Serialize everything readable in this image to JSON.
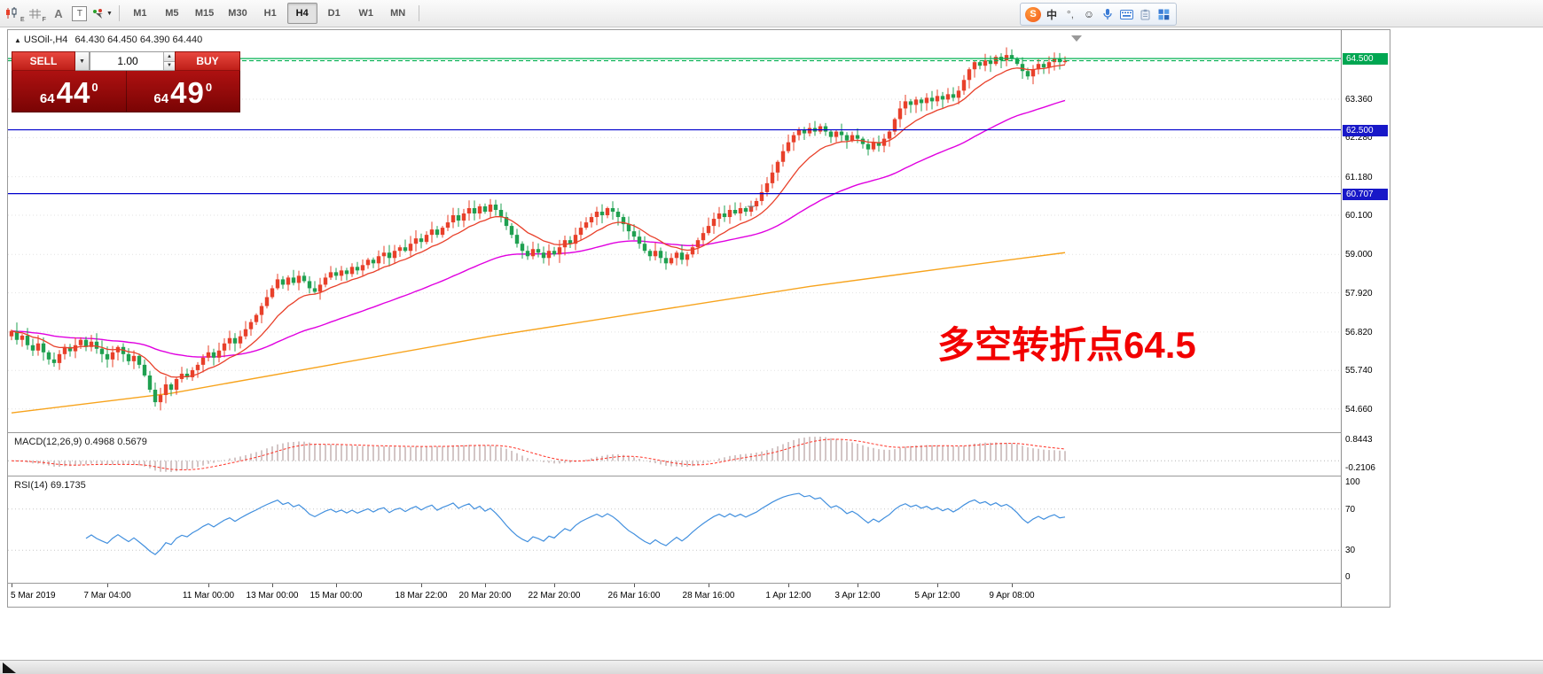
{
  "toolbar": {
    "icons": {
      "candlestick_sub": "E",
      "grid_sub": "F",
      "text_label": "A",
      "text_tool": "T",
      "dropdown_chevron": "▼"
    },
    "timeframes": [
      "M1",
      "M5",
      "M15",
      "M30",
      "H1",
      "H4",
      "D1",
      "W1",
      "MN"
    ],
    "active_timeframe": "H4"
  },
  "ime": {
    "logo": "S",
    "lang_toggle": "中",
    "punctuation": "°,",
    "emoji": "☺"
  },
  "chart": {
    "symbol_title": "USOil-,H4",
    "title_marker": "▲",
    "ohlc": "64.430 64.450 64.390 64.440",
    "trade_panel": {
      "sell_label": "SELL",
      "buy_label": "BUY",
      "volume": "1.00",
      "stepper_up": "▲",
      "stepper_down": "▼",
      "dropdown": "▼",
      "sell_price": {
        "small": "64",
        "big": "44",
        "pip": "0"
      },
      "buy_price": {
        "small": "64",
        "big": "49",
        "pip": "0"
      }
    },
    "annotation": "多空转折点64.5",
    "badges": [
      {
        "value": "64.500",
        "price": 64.5,
        "color": "#00a651"
      },
      {
        "value": "62.500",
        "price": 62.5,
        "color": "#1818c8"
      },
      {
        "value": "60.707",
        "price": 60.707,
        "color": "#1818c8"
      }
    ]
  },
  "chart_data": {
    "type": "candlestick",
    "symbol": "USOil-",
    "timeframe": "H4",
    "ylim": [
      54.06,
      65.3
    ],
    "y_ticks": [
      "63.360",
      "62.280",
      "61.180",
      "60.100",
      "59.000",
      "57.920",
      "56.820",
      "55.740",
      "54.660"
    ],
    "candle_colors": {
      "up": "#e8402a",
      "down": "#1fa050"
    },
    "closes": [
      56.85,
      56.6,
      56.72,
      56.45,
      56.3,
      56.5,
      56.25,
      56.05,
      55.95,
      56.2,
      56.4,
      56.28,
      56.45,
      56.6,
      56.4,
      56.55,
      56.35,
      56.2,
      56.05,
      56.25,
      56.4,
      56.2,
      56.0,
      56.15,
      55.9,
      55.6,
      55.2,
      54.85,
      55.05,
      55.35,
      55.2,
      55.5,
      55.65,
      55.55,
      55.75,
      55.9,
      56.1,
      56.25,
      56.1,
      56.3,
      56.5,
      56.65,
      56.5,
      56.7,
      56.9,
      57.1,
      57.3,
      57.55,
      57.8,
      58.05,
      58.3,
      58.15,
      58.35,
      58.2,
      58.4,
      58.25,
      58.05,
      57.95,
      58.15,
      58.35,
      58.5,
      58.4,
      58.55,
      58.45,
      58.65,
      58.55,
      58.7,
      58.85,
      58.75,
      58.95,
      59.05,
      58.9,
      59.1,
      59.2,
      59.1,
      59.3,
      59.45,
      59.35,
      59.55,
      59.7,
      59.55,
      59.75,
      59.9,
      60.1,
      59.95,
      60.15,
      60.3,
      60.15,
      60.35,
      60.2,
      60.4,
      60.25,
      60.05,
      59.8,
      59.55,
      59.3,
      59.1,
      58.95,
      59.15,
      59.05,
      58.9,
      59.1,
      59.0,
      59.2,
      59.4,
      59.3,
      59.55,
      59.75,
      59.9,
      60.05,
      60.2,
      60.1,
      60.3,
      60.2,
      60.05,
      59.85,
      59.65,
      59.5,
      59.3,
      59.1,
      58.95,
      59.1,
      58.9,
      58.75,
      58.9,
      59.05,
      58.85,
      59.0,
      59.2,
      59.4,
      59.6,
      59.8,
      60.0,
      60.15,
      60.05,
      60.25,
      60.15,
      60.3,
      60.2,
      60.35,
      60.5,
      60.75,
      61.0,
      61.3,
      61.6,
      61.9,
      62.15,
      62.35,
      62.5,
      62.4,
      62.55,
      62.45,
      62.6,
      62.45,
      62.3,
      62.45,
      62.35,
      62.2,
      62.35,
      62.25,
      62.1,
      61.95,
      62.15,
      62.05,
      62.25,
      62.45,
      62.8,
      63.1,
      63.3,
      63.2,
      63.35,
      63.25,
      63.4,
      63.3,
      63.45,
      63.35,
      63.5,
      63.4,
      63.6,
      63.9,
      64.2,
      64.4,
      64.3,
      64.45,
      64.35,
      64.55,
      64.45,
      64.6,
      64.5,
      64.35,
      64.15,
      64.0,
      64.2,
      64.35,
      64.25,
      64.4,
      64.5,
      64.4,
      64.44
    ],
    "moving_averages": {
      "fast": {
        "type": "ema",
        "period": 12,
        "color": "#e8402a"
      },
      "mid": {
        "type": "ema",
        "period": 50,
        "color": "#e000e0"
      },
      "slow": {
        "color": "#f7a31c",
        "points": [
          [
            0,
            54.55
          ],
          [
            30,
            55.1
          ],
          [
            60,
            55.9
          ],
          [
            90,
            56.7
          ],
          [
            120,
            57.4
          ],
          [
            150,
            58.1
          ],
          [
            175,
            58.6
          ],
          [
            198,
            59.05
          ]
        ]
      }
    },
    "levels": [
      {
        "price": 64.5,
        "color": "#00b050",
        "style": "solid"
      },
      {
        "price": 64.44,
        "color": "#00b050",
        "style": "dash"
      },
      {
        "price": 62.5,
        "color": "#0000cd",
        "style": "solid"
      },
      {
        "price": 60.707,
        "color": "#0000cd",
        "style": "solid"
      }
    ],
    "markers": {
      "plus": {
        "i": 139,
        "price": 60.35
      },
      "shift_triangle_x": 1205
    },
    "indicators": {
      "macd": {
        "label": "MACD(12,26,9)",
        "value_macd": "0.4968",
        "value_signal": "0.5679",
        "scale_top": "0.8443",
        "scale_bottom": "-0.2106",
        "histogram_color": "#c4b2b2",
        "signal_color": "#ff3226"
      },
      "rsi": {
        "label": "RSI(14)",
        "value": "69.1735",
        "levels": [
          100,
          70,
          30,
          0
        ],
        "line_color": "#418fde"
      }
    },
    "time_labels": [
      {
        "i": 0,
        "t": "5 Mar 2019"
      },
      {
        "i": 18,
        "t": "7 Mar 04:00"
      },
      {
        "i": 37,
        "t": "11 Mar 00:00"
      },
      {
        "i": 49,
        "t": "13 Mar 00:00"
      },
      {
        "i": 61,
        "t": "15 Mar 00:00"
      },
      {
        "i": 77,
        "t": "18 Mar 22:00"
      },
      {
        "i": 89,
        "t": "20 Mar 20:00"
      },
      {
        "i": 102,
        "t": "22 Mar 20:00"
      },
      {
        "i": 117,
        "t": "26 Mar 16:00"
      },
      {
        "i": 131,
        "t": "28 Mar 16:00"
      },
      {
        "i": 146,
        "t": "1 Apr 12:00"
      },
      {
        "i": 159,
        "t": "3 Apr 12:00"
      },
      {
        "i": 174,
        "t": "5 Apr 12:00"
      },
      {
        "i": 188,
        "t": "9 Apr 08:00"
      }
    ]
  }
}
